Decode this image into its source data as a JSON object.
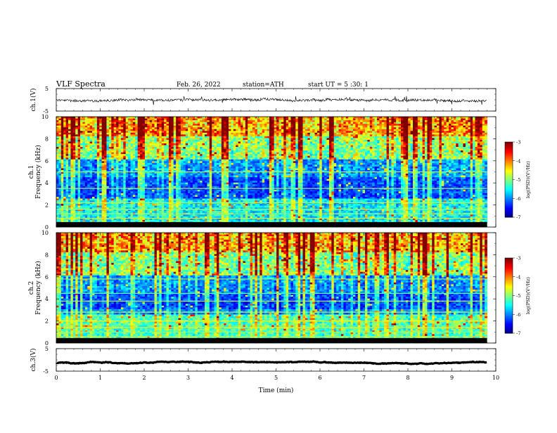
{
  "header": {
    "title": "VLF  Spectra",
    "date": "Feb. 26, 2022",
    "station": "station=ATH",
    "start": "start  UT  =   5  :30: 1"
  },
  "chart_data": {
    "type": "heatmap",
    "panels": [
      {
        "id": "ch1_wave",
        "kind": "waveform",
        "ylabel": "ch.1(V)",
        "yticks": [
          "5",
          "-5"
        ],
        "ylim": [
          -5,
          5
        ]
      },
      {
        "id": "ch1_spec",
        "kind": "spectrogram",
        "ylabel": "ch.1\nFrequency  (kHz)",
        "yticks": [
          "10",
          "8",
          "6",
          "4",
          "2",
          "0"
        ],
        "ylim": [
          0,
          10
        ]
      },
      {
        "id": "ch2_spec",
        "kind": "spectrogram",
        "ylabel": "ch.2\nFrequency  (kHz)",
        "yticks": [
          "10",
          "8",
          "6",
          "4",
          "2",
          "0"
        ],
        "ylim": [
          0,
          10
        ]
      },
      {
        "id": "ch3_wave",
        "kind": "waveform",
        "ylabel": "ch.3(V)",
        "yticks": [
          "5",
          "-5"
        ],
        "ylim": [
          -5,
          5
        ]
      }
    ],
    "xaxis": {
      "label": "Time  (min)",
      "ticks": [
        "0",
        "1",
        "2",
        "3",
        "4",
        "5",
        "6",
        "7",
        "8",
        "9",
        "10"
      ],
      "xlim": [
        0,
        10
      ],
      "data_end": 9.8
    },
    "colorbar": {
      "label": "log(PSD)(V²/Hz)",
      "ticks": [
        "-3",
        "-4",
        "-5",
        "-6",
        "-7"
      ],
      "range": [
        -7,
        -3
      ]
    },
    "colors": {
      "low": "#00004a",
      "mid": "#00c8ff",
      "high": "#ff0000"
    }
  }
}
